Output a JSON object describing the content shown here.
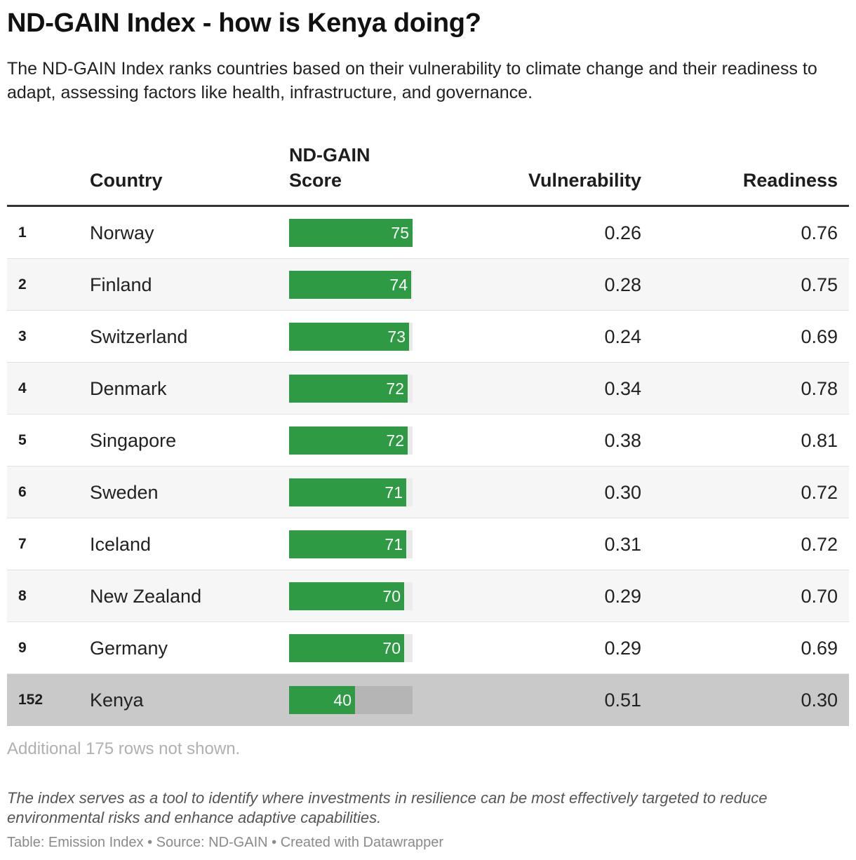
{
  "title": "ND-GAIN Index - how is Kenya doing?",
  "subtitle": "The ND-GAIN Index ranks countries based on their vulnerability to climate change and their readiness to adapt, assessing factors like health, infrastructure, and governance.",
  "colors": {
    "bar": "#2e9a43",
    "highlight_row": "#c9c9c9",
    "alt_row": "#f6f6f6"
  },
  "chart_data": {
    "type": "table",
    "columns": [
      "",
      "Country",
      "ND-GAIN Score",
      "Vulnerability",
      "Readiness"
    ],
    "score_range": [
      0,
      100
    ],
    "rows": [
      {
        "rank": "1",
        "country": "Norway",
        "score": 75,
        "vulnerability": "0.26",
        "readiness": "0.76"
      },
      {
        "rank": "2",
        "country": "Finland",
        "score": 74,
        "vulnerability": "0.28",
        "readiness": "0.75"
      },
      {
        "rank": "3",
        "country": "Switzerland",
        "score": 73,
        "vulnerability": "0.24",
        "readiness": "0.69"
      },
      {
        "rank": "4",
        "country": "Denmark",
        "score": 72,
        "vulnerability": "0.34",
        "readiness": "0.78"
      },
      {
        "rank": "5",
        "country": "Singapore",
        "score": 72,
        "vulnerability": "0.38",
        "readiness": "0.81"
      },
      {
        "rank": "6",
        "country": "Sweden",
        "score": 71,
        "vulnerability": "0.30",
        "readiness": "0.72"
      },
      {
        "rank": "7",
        "country": "Iceland",
        "score": 71,
        "vulnerability": "0.31",
        "readiness": "0.72"
      },
      {
        "rank": "8",
        "country": "New Zealand",
        "score": 70,
        "vulnerability": "0.29",
        "readiness": "0.70"
      },
      {
        "rank": "9",
        "country": "Germany",
        "score": 70,
        "vulnerability": "0.29",
        "readiness": "0.69"
      },
      {
        "rank": "152",
        "country": "Kenya",
        "score": 40,
        "vulnerability": "0.51",
        "readiness": "0.30",
        "highlighted": true
      }
    ]
  },
  "table": {
    "headers": {
      "country": "Country",
      "score": "ND-GAIN Score",
      "vulnerability": "Vulnerability",
      "readiness": "Readiness"
    }
  },
  "note": "Additional 175 rows not shown.",
  "description": "The index serves as a tool to identify where investments in resilience can be most effectively targeted to reduce environmental risks and enhance adaptive capabilities.",
  "footer": "Table: Emission Index • Source: ND-GAIN • Created with Datawrapper"
}
